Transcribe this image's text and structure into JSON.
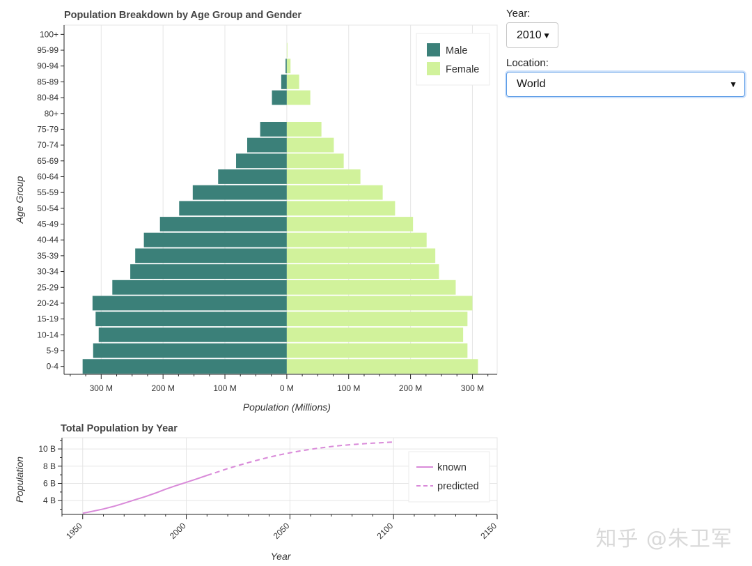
{
  "controls": {
    "year_label": "Year:",
    "year_value": "2010",
    "location_label": "Location:",
    "location_value": "World"
  },
  "watermark": "知乎 @朱卫军",
  "chart_data": [
    {
      "type": "bar",
      "orientation": "horizontal",
      "title": "Population Breakdown by Age Group and Gender",
      "xlabel": "Population (Millions)",
      "ylabel": "Age Group",
      "categories": [
        "0-4",
        "5-9",
        "10-14",
        "15-19",
        "20-24",
        "25-29",
        "30-34",
        "35-39",
        "40-44",
        "45-49",
        "50-54",
        "55-59",
        "60-64",
        "65-69",
        "70-74",
        "75-79",
        "80+",
        "80-84",
        "85-89",
        "90-94",
        "95-99",
        "100+"
      ],
      "series": [
        {
          "name": "Male",
          "color": "#3b8079",
          "values": [
            330,
            313,
            304,
            309,
            314,
            282,
            253,
            245,
            231,
            205,
            174,
            152,
            111,
            82,
            64,
            43,
            0,
            24,
            9,
            2,
            0,
            0
          ]
        },
        {
          "name": "Female",
          "color": "#d1f29b",
          "values": [
            309,
            292,
            285,
            292,
            300,
            273,
            246,
            240,
            226,
            204,
            175,
            155,
            119,
            92,
            76,
            56,
            0,
            38,
            20,
            6,
            1,
            0
          ]
        }
      ],
      "xlim": [
        -360,
        340
      ],
      "xticks": [
        -300,
        -200,
        -100,
        0,
        100,
        200,
        300
      ],
      "xtick_labels": [
        "300 M",
        "200 M",
        "100 M",
        "0 M",
        "100 M",
        "200 M",
        "300 M"
      ],
      "legend_position": "top-right",
      "grid": true
    },
    {
      "type": "line",
      "title": "Total Population by Year",
      "xlabel": "Year",
      "ylabel": "Population",
      "xlim": [
        1940,
        2150
      ],
      "ylim": [
        2.4,
        11.3
      ],
      "xticks": [
        1950,
        2000,
        2050,
        2100,
        2150
      ],
      "yticks": [
        4,
        6,
        8,
        10
      ],
      "ytick_labels": [
        "4 B",
        "6 B",
        "8 B",
        "10 B"
      ],
      "series": [
        {
          "name": "known",
          "style": "solid",
          "color": "#d98ad9",
          "x": [
            1950,
            1955,
            1960,
            1965,
            1970,
            1975,
            1980,
            1985,
            1990,
            1995,
            2000,
            2005,
            2010
          ],
          "y": [
            2.54,
            2.77,
            3.03,
            3.34,
            3.7,
            4.08,
            4.45,
            4.87,
            5.33,
            5.74,
            6.13,
            6.52,
            6.93
          ]
        },
        {
          "name": "predicted",
          "style": "dashed",
          "color": "#d98ad9",
          "x": [
            2010,
            2015,
            2020,
            2025,
            2030,
            2035,
            2040,
            2045,
            2050,
            2055,
            2060,
            2065,
            2070,
            2075,
            2080,
            2085,
            2090,
            2095,
            2100
          ],
          "y": [
            6.93,
            7.32,
            7.72,
            8.08,
            8.42,
            8.74,
            9.04,
            9.31,
            9.55,
            9.77,
            9.96,
            10.13,
            10.28,
            10.41,
            10.51,
            10.6,
            10.67,
            10.73,
            10.81
          ]
        }
      ],
      "legend_position": "top-right",
      "grid": true
    }
  ]
}
